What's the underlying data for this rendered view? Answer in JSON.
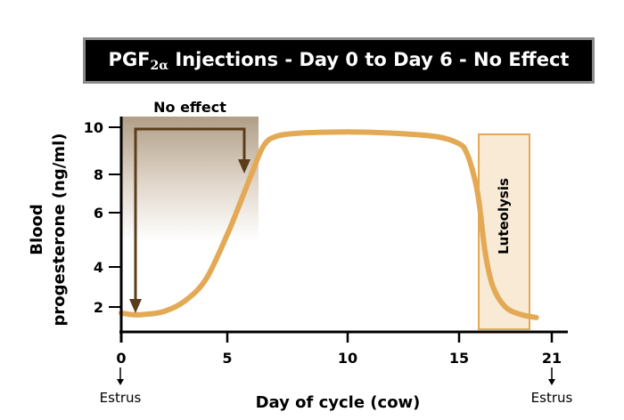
{
  "chart_data": {
    "type": "line",
    "title": "PGF",
    "title_sub": "2α",
    "title_rest": " Injections - Day 0 to Day 6 - No Effect",
    "xlabel": "Day of cycle (cow)",
    "ylabel_line1": "Blood",
    "ylabel_line2": "progesterone (ng/ml)",
    "xlim": [
      0,
      21
    ],
    "ylim": [
      1,
      10.5
    ],
    "x_ticks": [
      {
        "value": 0,
        "label": "0"
      },
      {
        "value": 5,
        "label": "5"
      },
      {
        "value": 10,
        "label": "10"
      },
      {
        "value": 15,
        "label": "15"
      },
      {
        "value": 21,
        "label": "21"
      }
    ],
    "y_ticks": [
      {
        "value": 10,
        "label": "10"
      },
      {
        "value": 8,
        "label": "8"
      },
      {
        "value": 6,
        "label": "6"
      },
      {
        "value": 4,
        "label": "4"
      },
      {
        "value": 2,
        "label": "2"
      }
    ],
    "series": [
      {
        "name": "Blood progesterone",
        "color": "#e3a955",
        "x": [
          0,
          0.5,
          1,
          2,
          3,
          4,
          5,
          5.5,
          6,
          6.5,
          7,
          8,
          10,
          12,
          14,
          15,
          15.5,
          16,
          16.3,
          16.7,
          17.2,
          18,
          19,
          20
        ],
        "y": [
          1.6,
          1.5,
          1.5,
          1.7,
          2.3,
          3.4,
          5.2,
          6.4,
          8.0,
          9.2,
          9.6,
          9.75,
          9.8,
          9.75,
          9.6,
          9.3,
          8.9,
          7.8,
          6.5,
          4.5,
          3.0,
          2.0,
          1.5,
          1.3
        ]
      }
    ],
    "annotations": {
      "no_effect_label": "No effect",
      "no_effect_range": [
        0,
        6
      ],
      "luteolysis_label": "Luteolysis",
      "luteolysis_range": [
        16,
        18.5
      ],
      "estrus_left": "Estrus",
      "estrus_right": "Estrus"
    },
    "colors": {
      "curve": "#e3a955",
      "arrow": "#5a3e1b",
      "shade_top": "#b09e87",
      "luteolysis_fill": "#f9ead6",
      "luteolysis_border": "#e3a955"
    }
  }
}
